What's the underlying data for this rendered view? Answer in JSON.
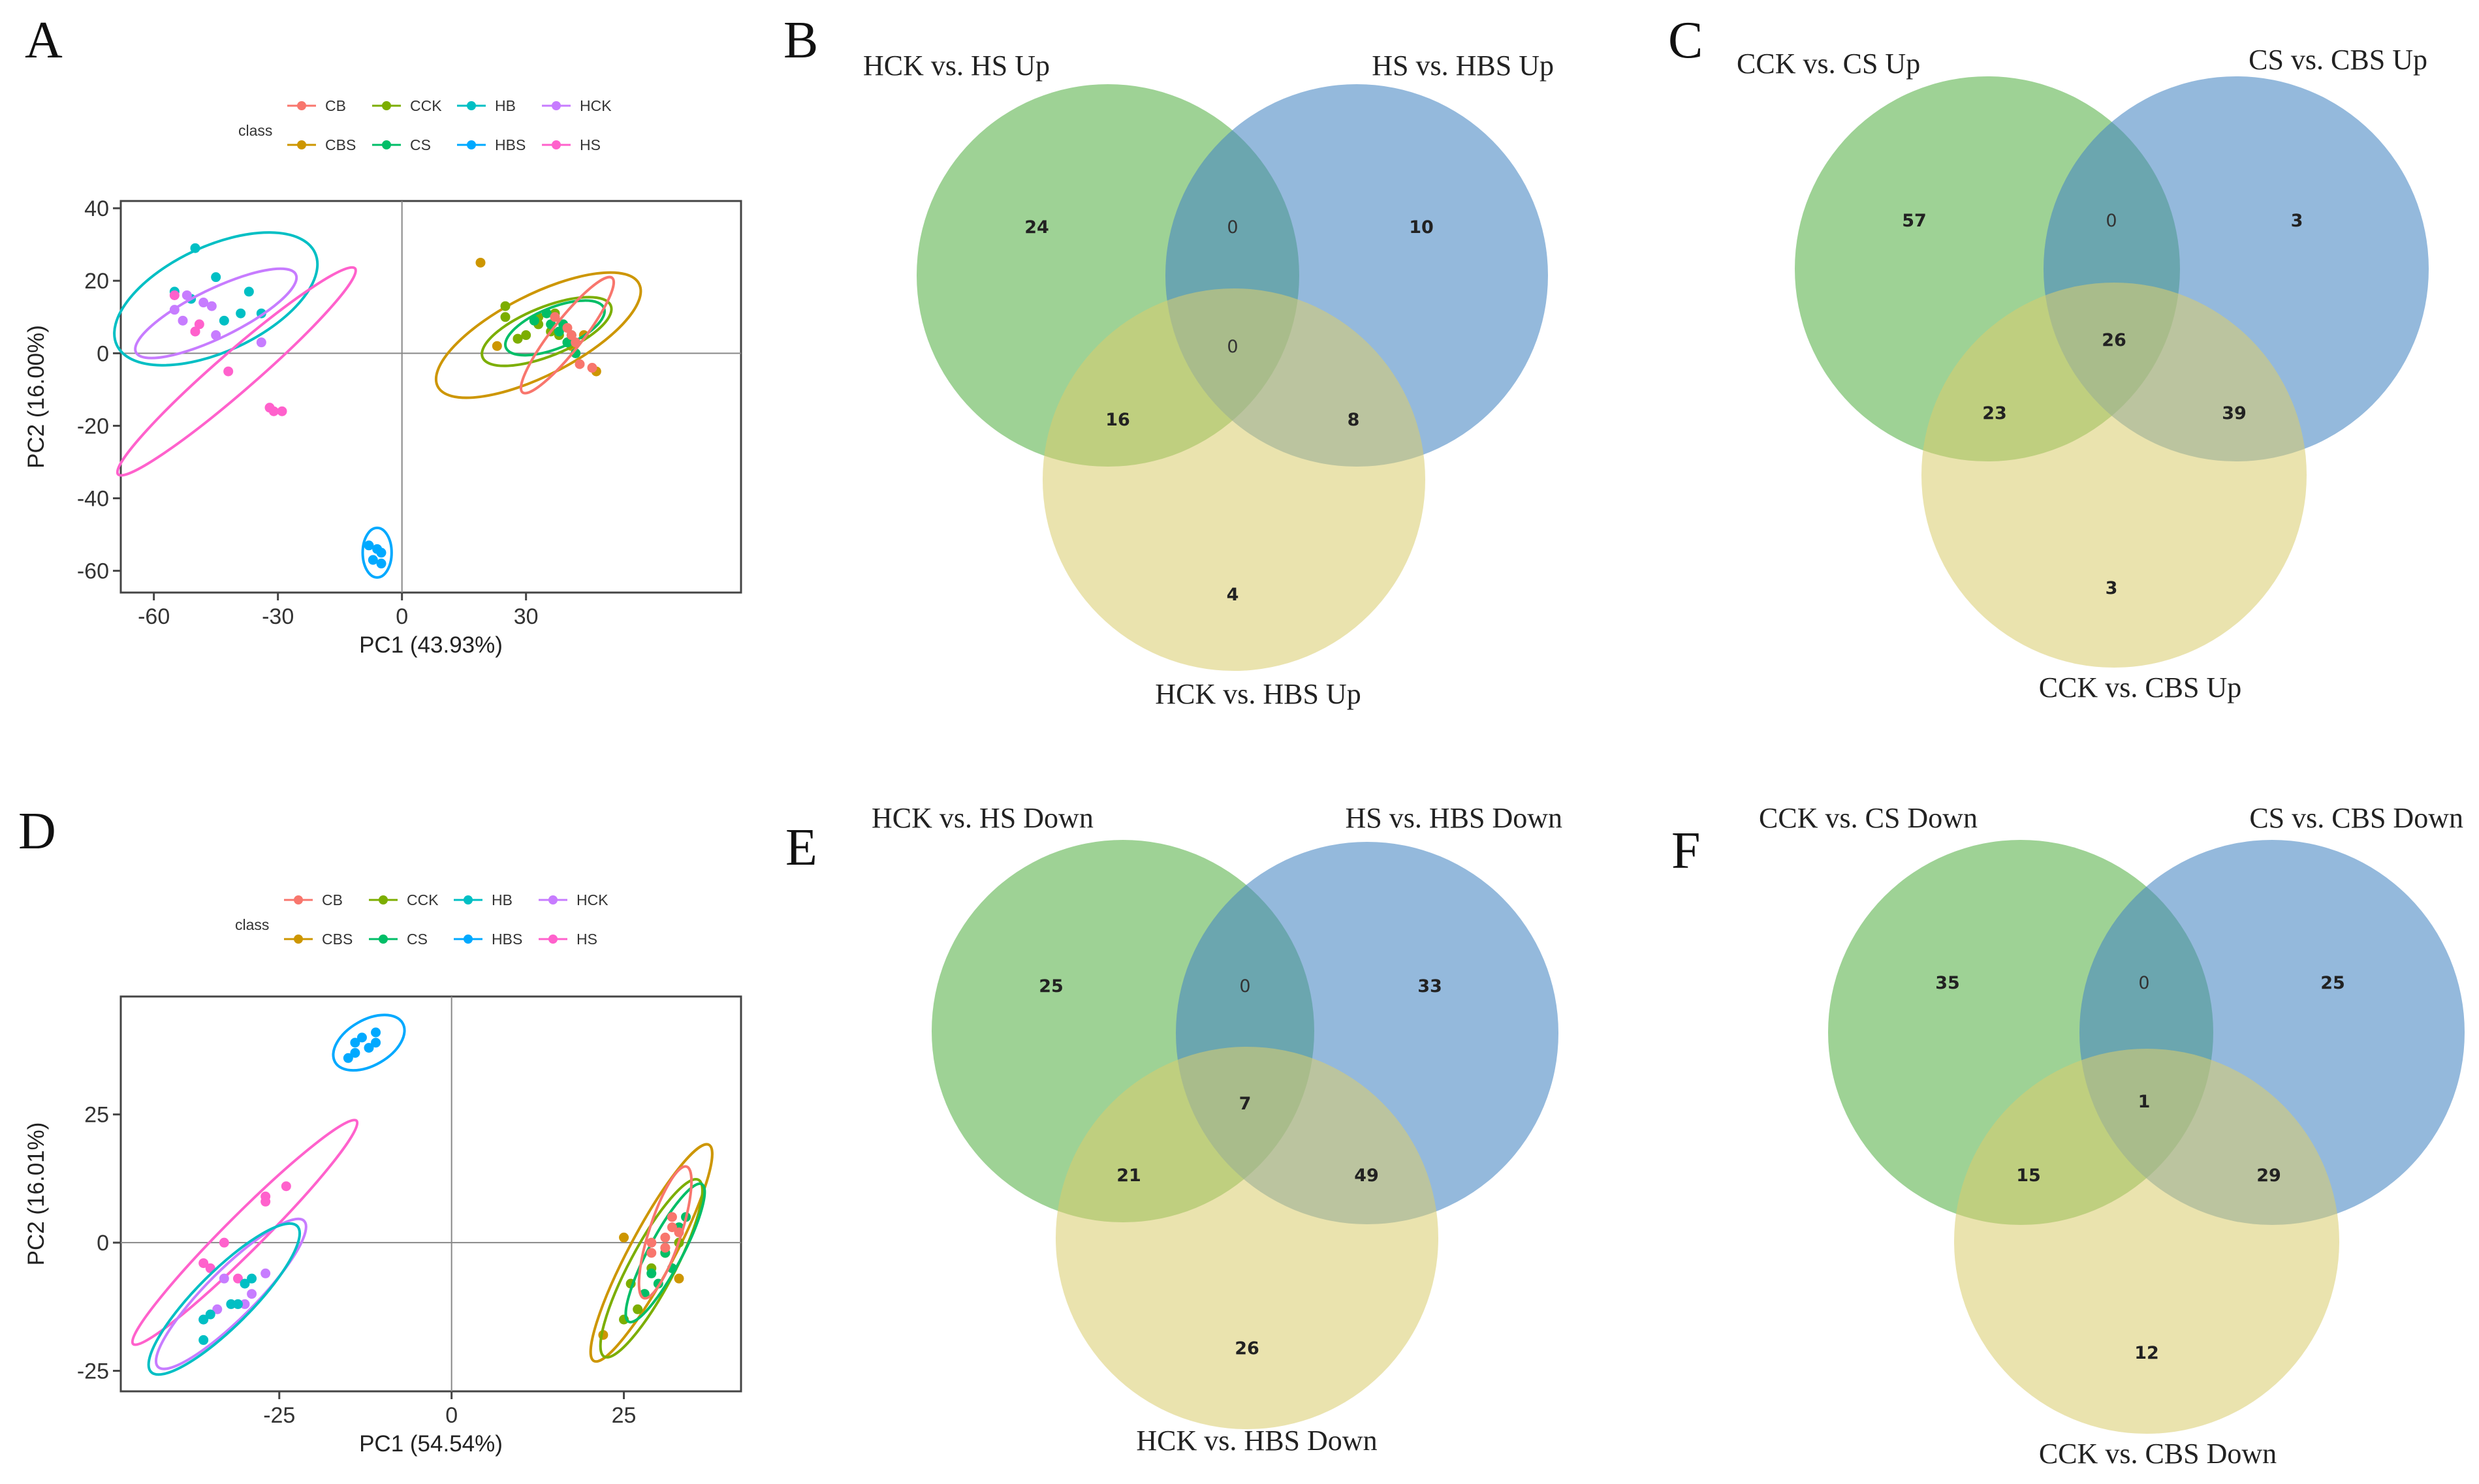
{
  "figure_labels": [
    "A",
    "B",
    "C",
    "D",
    "E",
    "F"
  ],
  "chart_data": [
    {
      "type": "scatter",
      "panel": "A",
      "xlabel": "PC1 (43.93%)",
      "ylabel": "PC2 (16.00%)",
      "xlim": [
        -68,
        82
      ],
      "ylim": [
        -66,
        42
      ],
      "xticks": [
        -60,
        -30,
        0,
        30
      ],
      "yticks": [
        40,
        20,
        0,
        -20,
        -40,
        -60
      ],
      "legend": {
        "title": "class",
        "entries": [
          "CB",
          "CCK",
          "HB",
          "HCK",
          "CBS",
          "CS",
          "HBS",
          "HS"
        ]
      },
      "colors": {
        "CB": "#f8766d",
        "CCK": "#7cae00",
        "HB": "#00bfc4",
        "HCK": "#c77cff",
        "CBS": "#cd9600",
        "CS": "#00be67",
        "HBS": "#00a9ff",
        "HS": "#ff61cc"
      },
      "series": [
        {
          "name": "HB",
          "points": [
            [
              -50,
              29
            ],
            [
              -45,
              21
            ],
            [
              -37,
              17
            ],
            [
              -34,
              11
            ],
            [
              -39,
              11
            ],
            [
              -51,
              15
            ],
            [
              -55,
              17
            ],
            [
              -43,
              9
            ]
          ],
          "ellipse": {
            "cx": -45,
            "cy": 15,
            "rx": 27,
            "ry": 13,
            "angle": -25
          }
        },
        {
          "name": "HCK",
          "points": [
            [
              -52,
              16
            ],
            [
              -48,
              14
            ],
            [
              -46,
              13
            ],
            [
              -53,
              9
            ],
            [
              -45,
              5
            ],
            [
              -50,
              6
            ],
            [
              -34,
              3
            ],
            [
              -55,
              12
            ]
          ],
          "ellipse": {
            "cx": -45,
            "cy": 11,
            "rx": 22,
            "ry": 6,
            "angle": -26
          }
        },
        {
          "name": "HS",
          "points": [
            [
              -55,
              16
            ],
            [
              -50,
              6
            ],
            [
              -42,
              -5
            ],
            [
              -32,
              -15
            ],
            [
              -29,
              -16
            ],
            [
              -49,
              8
            ],
            [
              -31,
              -16
            ]
          ],
          "ellipse": {
            "cx": -40,
            "cy": -5,
            "rx": 40,
            "ry": 5,
            "angle": -41
          }
        },
        {
          "name": "HBS",
          "points": [
            [
              -8,
              -53
            ],
            [
              -5,
              -55
            ],
            [
              -7,
              -57
            ],
            [
              -5,
              -58
            ],
            [
              -6,
              -54
            ]
          ],
          "ellipse": {
            "cx": -6,
            "cy": -55,
            "rx": 3.5,
            "ry": 6,
            "angle": 0
          }
        },
        {
          "name": "CBS",
          "points": [
            [
              19,
              25
            ],
            [
              23,
              2
            ],
            [
              28,
              4
            ],
            [
              41,
              2
            ],
            [
              44,
              5
            ],
            [
              47,
              -5
            ]
          ],
          "ellipse": {
            "cx": 33,
            "cy": 5,
            "rx": 28,
            "ry": 10,
            "angle": -27
          }
        },
        {
          "name": "CCK",
          "points": [
            [
              25,
              13
            ],
            [
              25,
              10
            ],
            [
              30,
              5
            ],
            [
              33,
              8
            ],
            [
              36,
              6
            ],
            [
              28,
              4
            ],
            [
              38,
              5
            ],
            [
              40,
              3
            ],
            [
              33,
              10
            ],
            [
              37,
              11
            ]
          ],
          "ellipse": {
            "cx": 35,
            "cy": 6,
            "rx": 17,
            "ry": 6,
            "angle": -22
          }
        },
        {
          "name": "CS",
          "points": [
            [
              32,
              9
            ],
            [
              35,
              11
            ],
            [
              36,
              8
            ],
            [
              38,
              6
            ],
            [
              40,
              3
            ],
            [
              42,
              0
            ],
            [
              39,
              8
            ],
            [
              37,
              10
            ],
            [
              41,
              5
            ]
          ],
          "ellipse": {
            "cx": 37,
            "cy": 7,
            "rx": 13,
            "ry": 5,
            "angle": -22
          }
        },
        {
          "name": "CB",
          "points": [
            [
              37,
              10
            ],
            [
              40,
              7
            ],
            [
              42,
              3
            ],
            [
              43,
              -3
            ],
            [
              46,
              -4
            ],
            [
              41,
              5
            ]
          ],
          "ellipse": {
            "cx": 40,
            "cy": 5,
            "rx": 19,
            "ry": 4,
            "angle": -52
          }
        }
      ]
    },
    {
      "type": "scatter",
      "panel": "D",
      "xlabel": "PC1 (54.54%)",
      "ylabel": "PC2 (16.01%)",
      "xlim": [
        -48,
        42
      ],
      "ylim": [
        -29,
        48
      ],
      "xticks": [
        -25,
        0,
        25
      ],
      "yticks": [
        25,
        0,
        -25
      ],
      "legend": {
        "title": "class",
        "entries": [
          "CB",
          "CCK",
          "HB",
          "HCK",
          "CBS",
          "CS",
          "HBS",
          "HS"
        ]
      },
      "colors": {
        "CB": "#f8766d",
        "CCK": "#7cae00",
        "HB": "#00bfc4",
        "HCK": "#c77cff",
        "CBS": "#cd9600",
        "CS": "#00be67",
        "HBS": "#00a9ff",
        "HS": "#ff61cc"
      },
      "series": [
        {
          "name": "HBS",
          "points": [
            [
              -14,
              39
            ],
            [
              -12,
              38
            ],
            [
              -11,
              39
            ],
            [
              -14,
              37
            ],
            [
              -13,
              40
            ],
            [
              -11,
              41
            ],
            [
              -15,
              36
            ]
          ],
          "ellipse": {
            "cx": -12,
            "cy": 39,
            "rx": 6,
            "ry": 3.5,
            "angle": -30
          }
        },
        {
          "name": "HS",
          "points": [
            [
              -24,
              11
            ],
            [
              -27,
              8
            ],
            [
              -27,
              9
            ],
            [
              -33,
              0
            ],
            [
              -35,
              -5
            ],
            [
              -36,
              -4
            ],
            [
              -31,
              -7
            ]
          ],
          "ellipse": {
            "cx": -30,
            "cy": 2,
            "rx": 26,
            "ry": 3,
            "angle": -45
          }
        },
        {
          "name": "HCK",
          "points": [
            [
              -33,
              -7
            ],
            [
              -34,
              -13
            ],
            [
              -29,
              -10
            ],
            [
              -27,
              -6
            ],
            [
              -30,
              -12
            ],
            [
              -36,
              -15
            ]
          ],
          "ellipse": {
            "cx": -32,
            "cy": -10,
            "rx": 17,
            "ry": 4,
            "angle": -45
          }
        },
        {
          "name": "HB",
          "points": [
            [
              -36,
              -15
            ],
            [
              -35,
              -14
            ],
            [
              -36,
              -19
            ],
            [
              -32,
              -12
            ],
            [
              -30,
              -8
            ],
            [
              -29,
              -7
            ],
            [
              -31,
              -12
            ]
          ],
          "ellipse": {
            "cx": -33,
            "cy": -11,
            "rx": 17,
            "ry": 4.5,
            "angle": -45
          }
        },
        {
          "name": "CBS",
          "points": [
            [
              25,
              1
            ],
            [
              22,
              -18
            ],
            [
              33,
              -7
            ],
            [
              31,
              -1
            ]
          ],
          "ellipse": {
            "cx": 29,
            "cy": -2,
            "rx": 22,
            "ry": 4,
            "angle": -62
          }
        },
        {
          "name": "CCK",
          "points": [
            [
              25,
              -15
            ],
            [
              26,
              -8
            ],
            [
              29,
              -5
            ],
            [
              31,
              -2
            ],
            [
              33,
              0
            ],
            [
              28,
              -10
            ],
            [
              27,
              -13
            ]
          ],
          "ellipse": {
            "cx": 29,
            "cy": -5,
            "rx": 18,
            "ry": 4,
            "angle": -62
          }
        },
        {
          "name": "CS",
          "points": [
            [
              28,
              -10
            ],
            [
              29,
              -6
            ],
            [
              31,
              -2
            ],
            [
              32,
              -5
            ],
            [
              33,
              3
            ],
            [
              34,
              5
            ],
            [
              30,
              -8
            ]
          ],
          "ellipse": {
            "cx": 31,
            "cy": -2,
            "rx": 14,
            "ry": 3,
            "angle": -62
          }
        },
        {
          "name": "CB",
          "points": [
            [
              29,
              -2
            ],
            [
              31,
              1
            ],
            [
              32,
              3
            ],
            [
              31,
              -1
            ],
            [
              33,
              2
            ],
            [
              29,
              0
            ],
            [
              32,
              5
            ]
          ],
          "ellipse": {
            "cx": 31,
            "cy": 2,
            "rx": 13,
            "ry": 3,
            "angle": -72
          }
        }
      ]
    },
    {
      "type": "venn3",
      "panel": "B",
      "sets": [
        "HCK vs. HS Up",
        "HS vs. HBS Up",
        "HCK vs. HBS Up"
      ],
      "regions": {
        "a_only": 24,
        "b_only": 10,
        "c_only": 4,
        "ab": 0,
        "ac": 16,
        "bc": 8,
        "abc": 0
      }
    },
    {
      "type": "venn3",
      "panel": "C",
      "sets": [
        "CCK vs. CS Up",
        "CS vs. CBS Up",
        "CCK vs. CBS Up"
      ],
      "regions": {
        "a_only": 57,
        "b_only": 3,
        "c_only": 3,
        "ab": 0,
        "ac": 23,
        "bc": 39,
        "abc": 26
      }
    },
    {
      "type": "venn3",
      "panel": "E",
      "sets": [
        "HCK vs. HS Down",
        "HS vs. HBS Down",
        "HCK vs. HBS Down"
      ],
      "regions": {
        "a_only": 25,
        "b_only": 33,
        "c_only": 26,
        "ab": 0,
        "ac": 21,
        "bc": 49,
        "abc": 7
      }
    },
    {
      "type": "venn3",
      "panel": "F",
      "sets": [
        "CCK vs. CS Down",
        "CS vs. CBS Down",
        "CCK vs. CBS Down"
      ],
      "regions": {
        "a_only": 35,
        "b_only": 25,
        "c_only": 12,
        "ab": 0,
        "ac": 15,
        "bc": 29,
        "abc": 1
      }
    }
  ]
}
